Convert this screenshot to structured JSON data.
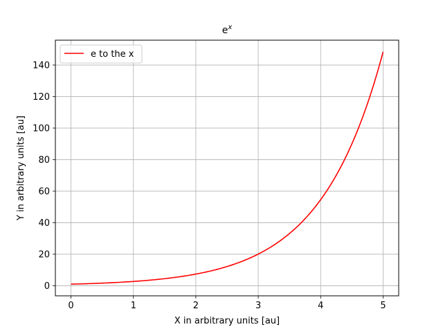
{
  "chart_data": {
    "type": "line",
    "title": "e",
    "title_superscript": "x",
    "xlabel": "X in arbitrary units [au]",
    "ylabel": "Y in arbitrary units [au]",
    "xlim": [
      -0.25,
      5.25
    ],
    "ylim": [
      -6.4,
      155.8
    ],
    "x_ticks": [
      0,
      1,
      2,
      3,
      4,
      5
    ],
    "x_tick_labels": [
      "0",
      "1",
      "2",
      "3",
      "4",
      "5"
    ],
    "y_ticks": [
      0,
      20,
      40,
      60,
      80,
      100,
      120,
      140
    ],
    "y_tick_labels": [
      "0",
      "20",
      "40",
      "60",
      "80",
      "100",
      "120",
      "140"
    ],
    "grid": true,
    "legend_position": "top-left",
    "series": [
      {
        "name": "e to the x",
        "color": "#ff0000",
        "x": [
          0,
          0.25,
          0.5,
          0.75,
          1,
          1.25,
          1.5,
          1.75,
          2,
          2.25,
          2.5,
          2.75,
          3,
          3.25,
          3.5,
          3.75,
          4,
          4.25,
          4.5,
          4.75,
          5
        ],
        "y": [
          1,
          1.28,
          1.65,
          2.12,
          2.72,
          3.49,
          4.48,
          5.75,
          7.39,
          9.49,
          12.18,
          15.64,
          20.09,
          25.79,
          33.12,
          42.52,
          54.6,
          70.11,
          90.02,
          115.58,
          148.41
        ]
      }
    ]
  }
}
